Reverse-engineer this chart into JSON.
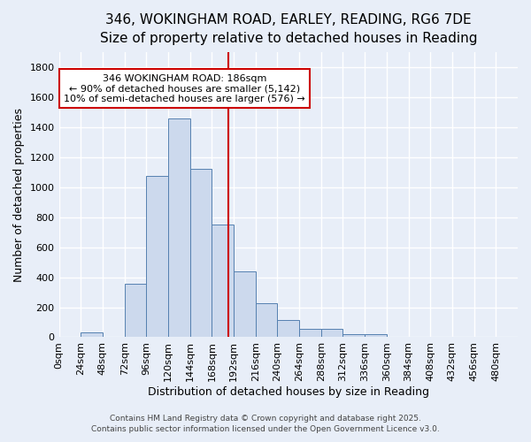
{
  "title1": "346, WOKINGHAM ROAD, EARLEY, READING, RG6 7DE",
  "title2": "Size of property relative to detached houses in Reading",
  "xlabel": "Distribution of detached houses by size in Reading",
  "ylabel": "Number of detached properties",
  "bar_color": "#ccd9ed",
  "bar_edge_color": "#5580b0",
  "bg_color": "#e8eef8",
  "grid_color": "#ffffff",
  "bin_edges": [
    0,
    24,
    48,
    72,
    96,
    120,
    144,
    168,
    192,
    216,
    240,
    264,
    288,
    312,
    336,
    360,
    384,
    408,
    432,
    456,
    480,
    504
  ],
  "counts": [
    0,
    30,
    0,
    355,
    1075,
    1460,
    1125,
    750,
    440,
    225,
    115,
    55,
    55,
    20,
    20,
    0,
    0,
    0,
    0,
    0,
    0
  ],
  "red_line_x": 186,
  "ylim": [
    0,
    1900
  ],
  "yticks": [
    0,
    200,
    400,
    600,
    800,
    1000,
    1200,
    1400,
    1600,
    1800
  ],
  "xtick_labels": [
    "0sqm",
    "24sqm",
    "48sqm",
    "72sqm",
    "96sqm",
    "120sqm",
    "144sqm",
    "168sqm",
    "192sqm",
    "216sqm",
    "240sqm",
    "264sqm",
    "288sqm",
    "312sqm",
    "336sqm",
    "360sqm",
    "384sqm",
    "408sqm",
    "432sqm",
    "456sqm",
    "480sqm"
  ],
  "annotation_text": "346 WOKINGHAM ROAD: 186sqm\n← 90% of detached houses are smaller (5,142)\n10% of semi-detached houses are larger (576) →",
  "annotation_box_color": "#ffffff",
  "annotation_box_edge": "#cc0000",
  "footer1": "Contains HM Land Registry data © Crown copyright and database right 2025.",
  "footer2": "Contains public sector information licensed under the Open Government Licence v3.0.",
  "title_fontsize": 11,
  "subtitle_fontsize": 10,
  "axis_label_fontsize": 9,
  "tick_fontsize": 8,
  "annotation_fontsize": 8
}
